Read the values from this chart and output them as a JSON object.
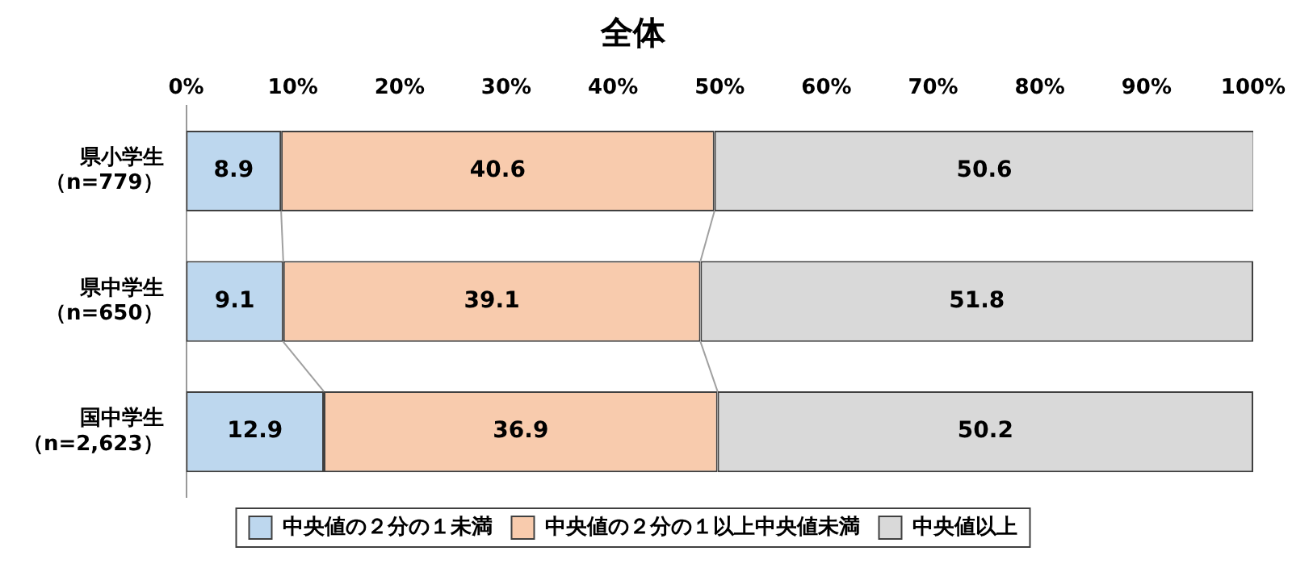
{
  "chart_data": {
    "type": "bar",
    "title": "全体",
    "orientation": "horizontal",
    "stacked": true,
    "categories": [
      "県小学生（n=779）",
      "県中学生（n=650）",
      "国中学生（n=2,623）"
    ],
    "series": [
      {
        "name": "中央値の２分の１未満",
        "color": "#bdd7ee",
        "values": [
          8.9,
          9.1,
          12.9
        ]
      },
      {
        "name": "中央値の２分の１以上中央値未満",
        "color": "#f8cbad",
        "values": [
          40.6,
          39.1,
          36.9
        ]
      },
      {
        "name": "中央値以上",
        "color": "#d9d9d9",
        "values": [
          50.6,
          51.8,
          50.2
        ]
      }
    ],
    "xlim": [
      0,
      100
    ],
    "xticks": [
      {
        "value": 0,
        "label": "0%"
      },
      {
        "value": 10,
        "label": "10%"
      },
      {
        "value": 20,
        "label": "20%"
      },
      {
        "value": 30,
        "label": "30%"
      },
      {
        "value": 40,
        "label": "40%"
      },
      {
        "value": 50,
        "label": "50%"
      },
      {
        "value": 60,
        "label": "60%"
      },
      {
        "value": 70,
        "label": "70%"
      },
      {
        "value": 80,
        "label": "80%"
      },
      {
        "value": 90,
        "label": "90%"
      },
      {
        "value": 100,
        "label": "100%"
      }
    ],
    "data_labels": true,
    "grid": false,
    "legend": "bottom"
  }
}
